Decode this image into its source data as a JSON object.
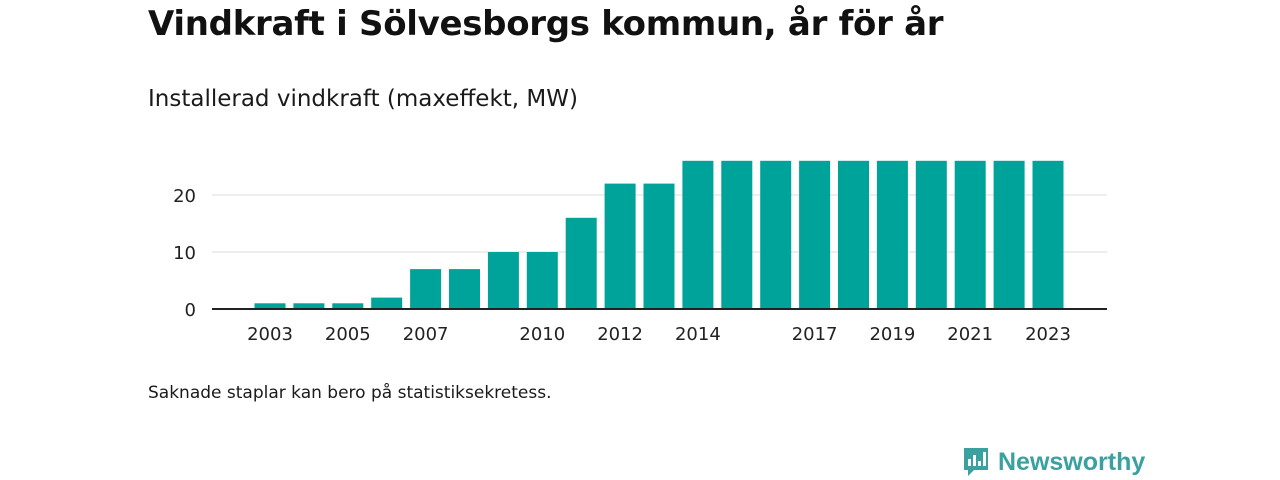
{
  "title": "Vindkraft i Sölvesborgs kommun, år för år",
  "subtitle": "Installerad vindkraft (maxeffekt, MW)",
  "note": "Saknade staplar kan bero på statistiksekretess.",
  "brand": {
    "name": "Newsworthy",
    "color": "#3aa1a0"
  },
  "colors": {
    "bar": "#00a39a",
    "grid": "#dddddd",
    "axis": "#222222",
    "text": "#222222"
  },
  "chart_data": {
    "type": "bar",
    "title": "",
    "xlabel": "",
    "ylabel": "",
    "categories": [
      "2003",
      "2004",
      "2005",
      "2006",
      "2007",
      "2008",
      "2009",
      "2010",
      "2011",
      "2012",
      "2013",
      "2014",
      "2015",
      "2016",
      "2017",
      "2018",
      "2019",
      "2020",
      "2021",
      "2022",
      "2023"
    ],
    "values": [
      1,
      1,
      1,
      2,
      7,
      7,
      10,
      10,
      16,
      22,
      22,
      26,
      26,
      26,
      26,
      26,
      26,
      26,
      26,
      26,
      26
    ],
    "x_tick_labels": [
      "2003",
      "2005",
      "2007",
      "2010",
      "2012",
      "2014",
      "2017",
      "2019",
      "2021",
      "2023"
    ],
    "y_ticks": [
      0,
      10,
      20
    ],
    "ylim": [
      0,
      26
    ],
    "grid": "horizontal",
    "legend": "none"
  }
}
